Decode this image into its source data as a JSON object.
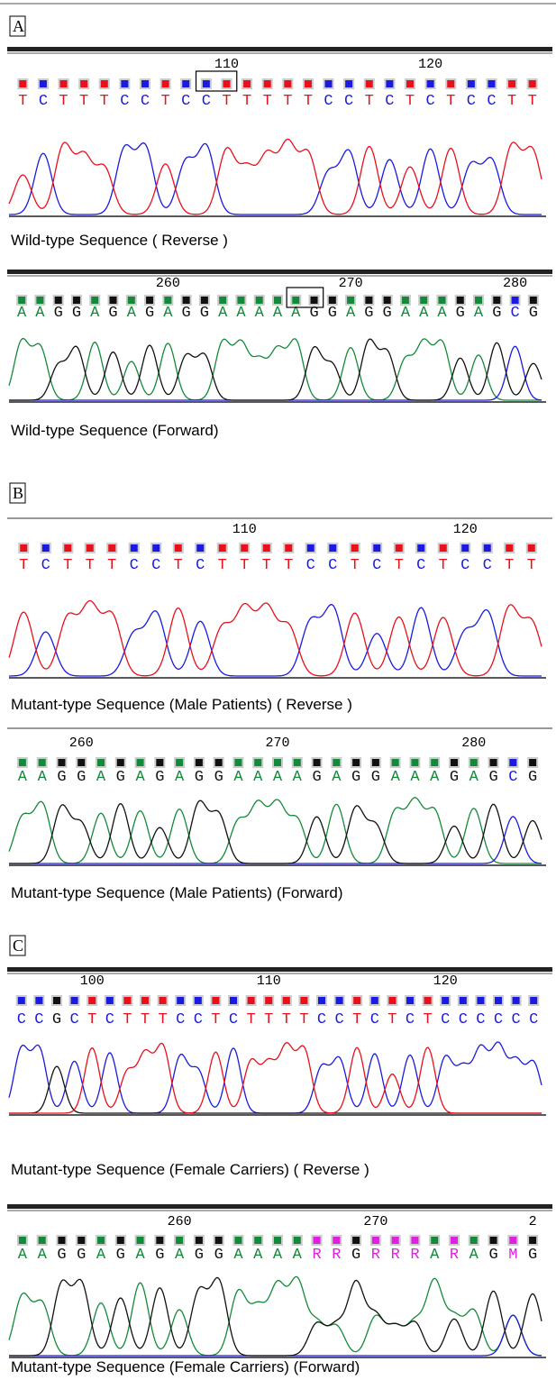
{
  "panels": [
    {
      "label": "A",
      "sections": [
        {
          "positions": [
            "110",
            "120"
          ],
          "bases": [
            "T",
            "C",
            "T",
            "T",
            "T",
            "C",
            "C",
            "T",
            "C",
            "C",
            "T",
            "T",
            "T",
            "T",
            "T",
            "C",
            "C",
            "T",
            "C",
            "T",
            "C",
            "T",
            "C",
            "C",
            "T",
            "T"
          ],
          "caption": "Wild-type Sequence  ( Reverse )"
        },
        {
          "positions": [
            "260",
            "270",
            "280"
          ],
          "bases": [
            "A",
            "A",
            "G",
            "G",
            "A",
            "G",
            "A",
            "G",
            "A",
            "G",
            "G",
            "A",
            "A",
            "A",
            "A",
            "A",
            "G",
            "G",
            "A",
            "G",
            "G",
            "A",
            "A",
            "A",
            "G",
            "A",
            "G",
            "C",
            "G"
          ],
          "caption": "Wild-type Sequence (Forward)"
        }
      ]
    },
    {
      "label": "B",
      "sections": [
        {
          "positions": [
            "110",
            "120"
          ],
          "bases": [
            "T",
            "C",
            "T",
            "T",
            "T",
            "C",
            "C",
            "T",
            "C",
            "T",
            "T",
            "T",
            "T",
            "C",
            "C",
            "T",
            "C",
            "T",
            "C",
            "T",
            "C",
            "C",
            "T",
            "T"
          ],
          "caption": "Mutant-type Sequence (Male Patients) ( Reverse )"
        },
        {
          "positions": [
            "260",
            "270",
            "280"
          ],
          "bases": [
            "A",
            "A",
            "G",
            "G",
            "A",
            "G",
            "A",
            "G",
            "A",
            "G",
            "G",
            "A",
            "A",
            "A",
            "A",
            "G",
            "A",
            "G",
            "G",
            "A",
            "A",
            "A",
            "G",
            "A",
            "G",
            "C",
            "G"
          ],
          "caption": "Mutant-type Sequence (Male Patients) (Forward)"
        }
      ]
    },
    {
      "label": "C",
      "sections": [
        {
          "positions": [
            "100",
            "110",
            "120"
          ],
          "bases": [
            "C",
            "C",
            "G",
            "C",
            "T",
            "C",
            "T",
            "T",
            "T",
            "C",
            "C",
            "T",
            "C",
            "T",
            "T",
            "T",
            "T",
            "C",
            "C",
            "T",
            "C",
            "T",
            "C",
            "T",
            "C",
            "C",
            "C",
            "C",
            "C",
            "C"
          ],
          "caption": "Mutant-type Sequence (Female Carriers) ( Reverse )"
        },
        {
          "positions": [
            "260",
            "270",
            "2"
          ],
          "bases": [
            "A",
            "A",
            "G",
            "G",
            "A",
            "G",
            "A",
            "G",
            "A",
            "G",
            "G",
            "A",
            "A",
            "A",
            "A",
            "R",
            "R",
            "G",
            "R",
            "R",
            "R",
            "A",
            "R",
            "A",
            "G",
            "M",
            "G"
          ],
          "caption": "Mutant-type Sequence (Female Carriers) (Forward)"
        }
      ]
    }
  ]
}
